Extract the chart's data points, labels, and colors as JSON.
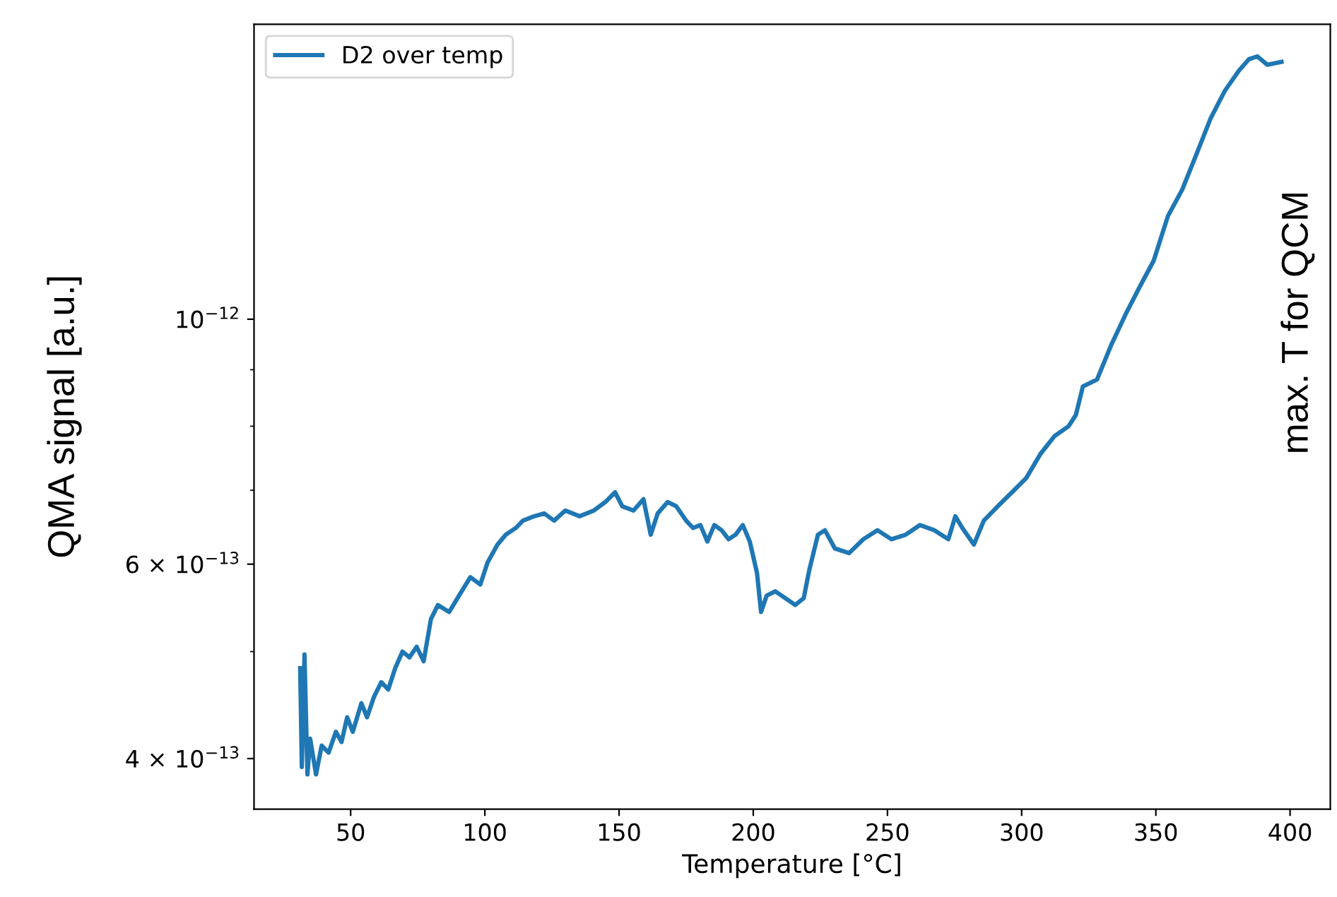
{
  "chart_data": {
    "type": "line",
    "xlabel": "Temperature [°C]",
    "ylabel": "QMA signal [a.u.]",
    "log": "y",
    "legend": "top left",
    "grid": false,
    "xlim": [
      14,
      415
    ],
    "xticks": [
      50,
      100,
      150,
      200,
      250,
      300,
      350,
      400
    ],
    "ylim": [
      3.6e-13,
      1.85e-12
    ],
    "yticks": [
      {
        "value": 4e-13,
        "label": "4 × 10$^{−13}$"
      },
      {
        "value": 5e-13,
        "label": null
      },
      {
        "value": 6e-13,
        "label": "6 × 10$^{−13}$"
      },
      {
        "value": 7e-13,
        "label": null
      },
      {
        "value": 8e-13,
        "label": null
      },
      {
        "value": 9e-13,
        "label": null
      },
      {
        "value": 1e-12,
        "label": "10$^{−12}$"
      }
    ],
    "annotations": [
      "max. T for QCM"
    ],
    "series": [
      {
        "name": "D2 over temp",
        "color": "#1f77b4",
        "x": [
          31.2,
          31.8,
          32.8,
          33.9,
          34.9,
          37.1,
          39.2,
          41.8,
          44.5,
          46.6,
          48.7,
          50.8,
          54.0,
          56.1,
          58.7,
          61.4,
          64.0,
          66.6,
          69.3,
          71.9,
          74.6,
          77.2,
          79.9,
          82.5,
          86.7,
          90.4,
          94.6,
          98.3,
          101.0,
          104.7,
          107.8,
          111.5,
          114.2,
          118.4,
          122.1,
          125.8,
          130.0,
          135.3,
          140.6,
          144.9,
          148.5,
          151.2,
          155.4,
          159.1,
          161.8,
          164.4,
          168.1,
          171.3,
          175.0,
          177.6,
          180.3,
          182.9,
          185.5,
          188.2,
          190.8,
          193.4,
          196.1,
          198.7,
          201.4,
          202.9,
          205.0,
          208.2,
          211.9,
          215.6,
          218.8,
          220.9,
          224.1,
          226.7,
          230.4,
          235.7,
          241.0,
          246.3,
          251.5,
          256.8,
          262.1,
          267.4,
          272.7,
          275.3,
          277.9,
          282.2,
          285.9,
          291.1,
          296.4,
          301.7,
          307.0,
          312.3,
          317.5,
          320.2,
          322.8,
          328.1,
          333.4,
          338.7,
          344.0,
          349.2,
          354.5,
          359.8,
          365.1,
          370.4,
          375.7,
          381.0,
          384.7,
          387.8,
          391.5,
          396.8
        ],
        "values": [
          4.83e-13,
          3.93e-13,
          4.97e-13,
          3.87e-13,
          4.17e-13,
          3.87e-13,
          4.11e-13,
          4.05e-13,
          4.23e-13,
          4.14e-13,
          4.36e-13,
          4.23e-13,
          4.49e-13,
          4.36e-13,
          4.55e-13,
          4.69e-13,
          4.62e-13,
          4.83e-13,
          5e-13,
          4.94e-13,
          5.05e-13,
          4.9e-13,
          5.35e-13,
          5.51e-13,
          5.43e-13,
          5.62e-13,
          5.84e-13,
          5.75e-13,
          6.02e-13,
          6.25e-13,
          6.38e-13,
          6.47e-13,
          6.57e-13,
          6.63e-13,
          6.67e-13,
          6.57e-13,
          6.71e-13,
          6.63e-13,
          6.71e-13,
          6.83e-13,
          6.97e-13,
          6.77e-13,
          6.71e-13,
          6.87e-13,
          6.38e-13,
          6.67e-13,
          6.83e-13,
          6.77e-13,
          6.57e-13,
          6.47e-13,
          6.51e-13,
          6.29e-13,
          6.51e-13,
          6.44e-13,
          6.32e-13,
          6.38e-13,
          6.51e-13,
          6.29e-13,
          5.89e-13,
          5.43e-13,
          5.62e-13,
          5.67e-13,
          5.59e-13,
          5.51e-13,
          5.59e-13,
          5.93e-13,
          6.38e-13,
          6.44e-13,
          6.2e-13,
          6.14e-13,
          6.32e-13,
          6.44e-13,
          6.32e-13,
          6.38e-13,
          6.51e-13,
          6.44e-13,
          6.32e-13,
          6.63e-13,
          6.47e-13,
          6.25e-13,
          6.57e-13,
          6.77e-13,
          6.97e-13,
          7.18e-13,
          7.55e-13,
          7.84e-13,
          8e-13,
          8.19e-13,
          8.69e-13,
          8.82e-13,
          9.48e-13,
          1.01e-12,
          1.07e-12,
          1.13e-12,
          1.24e-12,
          1.31e-12,
          1.41e-12,
          1.52e-12,
          1.61e-12,
          1.68e-12,
          1.72e-12,
          1.73e-12,
          1.7e-12,
          1.71e-12
        ]
      }
    ]
  }
}
